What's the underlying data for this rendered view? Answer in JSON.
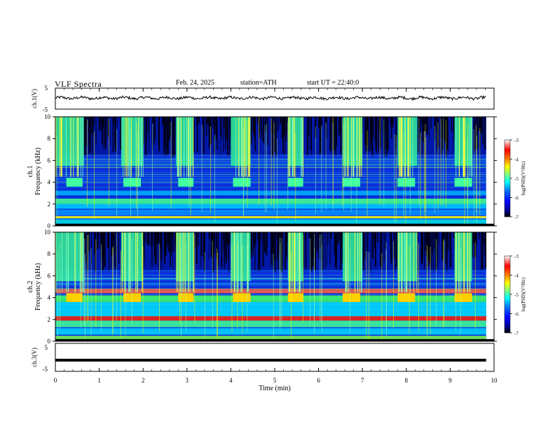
{
  "header": {
    "title": "VLF Spectra",
    "date": "Feb. 24, 2025",
    "station": "station=ATH",
    "start": "start UT =  22:40:0"
  },
  "chart_data": [
    {
      "type": "line",
      "name": "ch1-waveform",
      "ylabel": "ch.1(V)",
      "ylim": [
        -5,
        5
      ],
      "yticks": [
        "5",
        "-5"
      ],
      "x_range": [
        0,
        10
      ],
      "approx_level": 0.3
    },
    {
      "type": "heatmap",
      "name": "ch1-spectrogram",
      "ylabel": "ch.1\nFrequency (kHz)",
      "ylabel_lines": [
        "ch.1",
        "Frequency (kHz)"
      ],
      "ylim": [
        0,
        10
      ],
      "yticks": [
        "0",
        "2",
        "4",
        "6",
        "8",
        "10"
      ],
      "x_range": [
        0,
        10
      ],
      "colorbar": {
        "label": "log(PSD)(V²/Hz)",
        "ticks": [
          "-3",
          "-4",
          "-5",
          "-6",
          "-7"
        ],
        "range": [
          -7,
          -3
        ]
      },
      "sferic_bursts_min": [
        [
          0,
          0.65
        ],
        [
          1.5,
          2.0
        ],
        [
          2.75,
          3.15
        ],
        [
          4.0,
          4.45
        ],
        [
          5.3,
          5.65
        ],
        [
          6.55,
          7.0
        ],
        [
          7.8,
          8.25
        ],
        [
          9.1,
          9.5
        ]
      ],
      "tone_4khz_segments_min": [
        [
          0.25,
          0.62
        ],
        [
          1.55,
          1.95
        ],
        [
          2.8,
          3.15
        ],
        [
          4.05,
          4.45
        ],
        [
          5.3,
          5.65
        ],
        [
          6.55,
          6.95
        ],
        [
          7.8,
          8.2
        ],
        [
          9.1,
          9.5
        ]
      ]
    },
    {
      "type": "heatmap",
      "name": "ch2-spectrogram",
      "ylabel": "ch.2\nFrequency (kHz)",
      "ylabel_lines": [
        "ch.2",
        "Frequency (kHz)"
      ],
      "ylim": [
        0,
        10
      ],
      "yticks": [
        "0",
        "2",
        "4",
        "6",
        "8",
        "10"
      ],
      "x_range": [
        0,
        10
      ],
      "colorbar": {
        "label": "log(PSD)(V²/Hz)",
        "ticks": [
          "-3",
          "-4",
          "-5",
          "-6",
          "-7"
        ],
        "range": [
          -7,
          -3
        ]
      },
      "sferic_bursts_min": [
        [
          0,
          0.65
        ],
        [
          1.5,
          2.0
        ],
        [
          2.75,
          3.15
        ],
        [
          4.0,
          4.45
        ],
        [
          5.3,
          5.65
        ],
        [
          6.55,
          7.0
        ],
        [
          7.8,
          8.25
        ],
        [
          9.1,
          9.5
        ]
      ],
      "tone_4khz_segments_min": [
        [
          0.25,
          0.62
        ],
        [
          1.55,
          1.95
        ],
        [
          2.8,
          3.15
        ],
        [
          4.05,
          4.45
        ],
        [
          5.3,
          5.65
        ],
        [
          6.55,
          6.95
        ],
        [
          7.8,
          8.2
        ],
        [
          9.1,
          9.5
        ]
      ]
    },
    {
      "type": "line",
      "name": "ch3-waveform",
      "ylabel": "ch.3(V)",
      "ylim": [
        -5,
        5
      ],
      "yticks": [
        "5",
        "-5"
      ],
      "x_range": [
        0,
        10
      ],
      "approx_level": -1
    }
  ],
  "xaxis": {
    "label": "Time (min)",
    "range": [
      0,
      10
    ],
    "ticks": [
      "0",
      "1",
      "2",
      "3",
      "4",
      "5",
      "6",
      "7",
      "8",
      "9",
      "10"
    ]
  },
  "colors": {
    "ink": "#000000",
    "spectrogram_background": "#0a2fd8",
    "jet": [
      "#000000",
      "#00008f",
      "#0000ff",
      "#0080ff",
      "#00ffff",
      "#80ff80",
      "#ffff00",
      "#ff8000",
      "#ff0000",
      "#ffffff"
    ]
  }
}
